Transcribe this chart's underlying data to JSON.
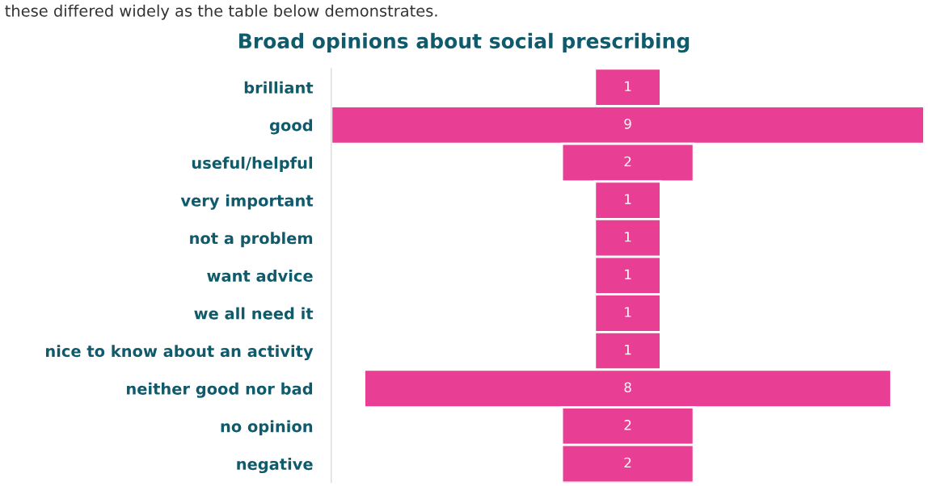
{
  "chart_data": {
    "type": "other",
    "title": "Broad opinions about social prescribing",
    "annotations": [
      "these differed widely as the table below demonstrates."
    ],
    "categories": [
      "brilliant",
      "good",
      "useful/helpful",
      "very important",
      "not a problem",
      "want advice",
      "we all need it",
      "nice to know about an activity",
      "neither good nor bad",
      "no opinion",
      "negative"
    ],
    "values": [
      1,
      9,
      2,
      1,
      1,
      1,
      1,
      1,
      8,
      2,
      2
    ],
    "color": "#e83e93",
    "data_labels": true
  }
}
